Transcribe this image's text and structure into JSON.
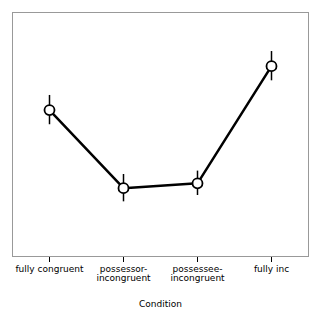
{
  "chart_data": {
    "type": "line",
    "categories": [
      "fully congruent",
      "possessor-\nincongruent",
      "possessee-\nincongruent",
      "fully inc"
    ],
    "values": [
      0.88,
      0.72,
      0.73,
      0.97
    ],
    "errors": [
      0.03,
      0.028,
      0.025,
      0.03
    ],
    "xlabel": "Condition",
    "ylim": [
      0.58,
      1.08
    ],
    "tick_labels": "x",
    "grid": false,
    "color": "black",
    "marker": "circle"
  }
}
